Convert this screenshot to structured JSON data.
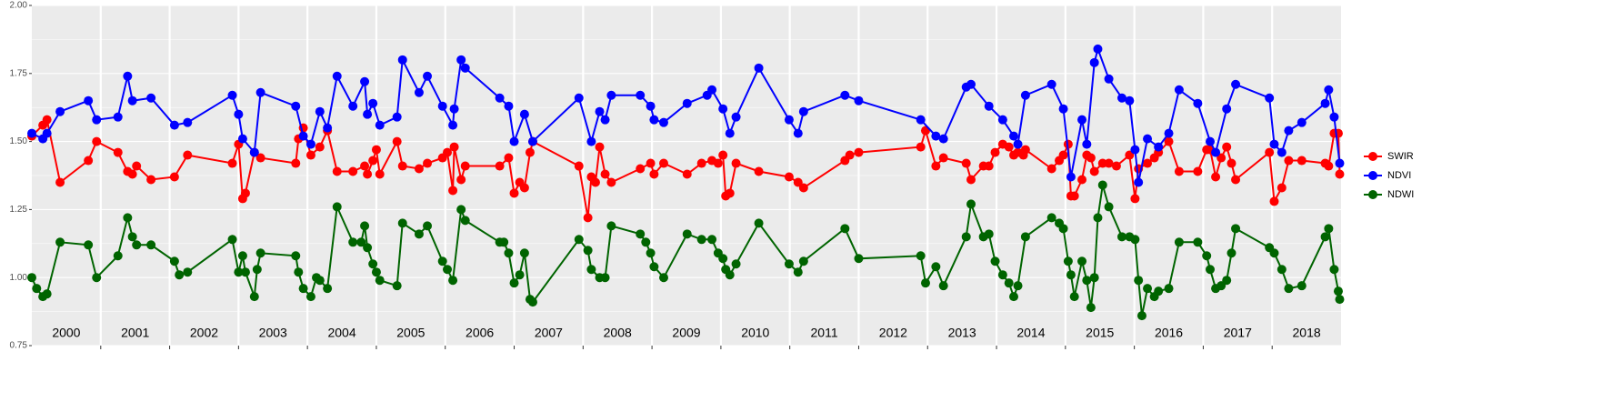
{
  "chart_data": {
    "type": "line",
    "xlim": [
      2000,
      2019
    ],
    "xticks": [
      2001,
      2002,
      2003,
      2004,
      2005,
      2006,
      2007,
      2008,
      2009,
      2010,
      2011,
      2012,
      2013,
      2014,
      2015,
      2016,
      2017,
      2018
    ],
    "year_labels": [
      2000,
      2001,
      2002,
      2003,
      2004,
      2005,
      2006,
      2007,
      2008,
      2009,
      2010,
      2011,
      2012,
      2013,
      2014,
      2015,
      2016,
      2017,
      2018
    ],
    "ylim": [
      0.75,
      2
    ],
    "yticks": [
      0.75,
      {
        "value": 1,
        "label": "1.00"
      },
      1.25,
      {
        "value": 1.5,
        "label": "1.50"
      },
      1.75,
      {
        "value": 2,
        "label": "2.00"
      }
    ],
    "grid": true,
    "legend": "right",
    "series": [
      {
        "name": "SWIR",
        "color": "#ff0000",
        "x": [
          2000.0,
          2000.16,
          2000.22,
          2000.41,
          2000.82,
          2000.94,
          2001.25,
          2001.39,
          2001.46,
          2001.52,
          2001.73,
          2002.07,
          2002.26,
          2002.91,
          2003.0,
          2003.06,
          2003.1,
          2003.23,
          2003.32,
          2003.83,
          2003.87,
          2003.94,
          2004.05,
          2004.18,
          2004.29,
          2004.43,
          2004.66,
          2004.83,
          2004.87,
          2004.95,
          2005.0,
          2005.05,
          2005.3,
          2005.38,
          2005.62,
          2005.74,
          2005.96,
          2006.03,
          2006.11,
          2006.13,
          2006.23,
          2006.29,
          2006.79,
          2006.92,
          2007.0,
          2007.08,
          2007.15,
          2007.23,
          2007.27,
          2007.94,
          2008.07,
          2008.12,
          2008.18,
          2008.24,
          2008.32,
          2008.41,
          2008.83,
          2008.98,
          2009.03,
          2009.17,
          2009.51,
          2009.72,
          2009.87,
          2009.96,
          2010.03,
          2010.07,
          2010.13,
          2010.22,
          2010.55,
          2010.99,
          2011.12,
          2011.2,
          2011.8,
          2011.87,
          2012.0,
          2012.9,
          2012.97,
          2013.12,
          2013.23,
          2013.56,
          2013.63,
          2013.81,
          2013.89,
          2013.98,
          2014.09,
          2014.18,
          2014.25,
          2014.31,
          2014.39,
          2014.42,
          2014.8,
          2014.91,
          2014.97,
          2015.04,
          2015.08,
          2015.13,
          2015.24,
          2015.31,
          2015.37,
          2015.42,
          2015.54,
          2015.63,
          2015.74,
          2015.93,
          2016.01,
          2016.06,
          2016.19,
          2016.29,
          2016.35,
          2016.5,
          2016.65,
          2016.92,
          2017.05,
          2017.1,
          2017.18,
          2017.26,
          2017.34,
          2017.41,
          2017.47,
          2017.96,
          2018.03,
          2018.14,
          2018.24,
          2018.43,
          2018.77,
          2018.82,
          2018.9,
          2018.96,
          2018.98
        ],
        "values": [
          1.52,
          1.56,
          1.58,
          1.35,
          1.43,
          1.5,
          1.46,
          1.39,
          1.38,
          1.41,
          1.36,
          1.37,
          1.45,
          1.42,
          1.49,
          1.29,
          1.31,
          1.46,
          1.44,
          1.42,
          1.51,
          1.55,
          1.45,
          1.48,
          1.54,
          1.39,
          1.39,
          1.41,
          1.38,
          1.43,
          1.47,
          1.38,
          1.5,
          1.41,
          1.4,
          1.42,
          1.44,
          1.46,
          1.32,
          1.48,
          1.36,
          1.41,
          1.41,
          1.44,
          1.31,
          1.35,
          1.33,
          1.46,
          1.5,
          1.41,
          1.22,
          1.37,
          1.35,
          1.48,
          1.38,
          1.35,
          1.4,
          1.42,
          1.38,
          1.42,
          1.38,
          1.42,
          1.43,
          1.42,
          1.45,
          1.3,
          1.31,
          1.42,
          1.39,
          1.37,
          1.35,
          1.33,
          1.43,
          1.45,
          1.46,
          1.48,
          1.54,
          1.41,
          1.44,
          1.42,
          1.36,
          1.41,
          1.41,
          1.46,
          1.49,
          1.48,
          1.45,
          1.46,
          1.45,
          1.47,
          1.4,
          1.43,
          1.45,
          1.49,
          1.3,
          1.3,
          1.36,
          1.45,
          1.44,
          1.39,
          1.42,
          1.42,
          1.41,
          1.45,
          1.29,
          1.4,
          1.42,
          1.44,
          1.46,
          1.5,
          1.39,
          1.39,
          1.47,
          1.47,
          1.37,
          1.44,
          1.48,
          1.42,
          1.36,
          1.46,
          1.28,
          1.33,
          1.43,
          1.43,
          1.42,
          1.41,
          1.53,
          1.53,
          1.38
        ]
      },
      {
        "name": "NDVI",
        "color": "#0000ff",
        "x": [
          2000.0,
          2000.16,
          2000.22,
          2000.41,
          2000.82,
          2000.94,
          2001.25,
          2001.39,
          2001.46,
          2001.73,
          2002.07,
          2002.26,
          2002.91,
          2003.0,
          2003.06,
          2003.23,
          2003.32,
          2003.83,
          2003.94,
          2004.05,
          2004.18,
          2004.29,
          2004.43,
          2004.66,
          2004.83,
          2004.87,
          2004.95,
          2005.05,
          2005.3,
          2005.38,
          2005.62,
          2005.74,
          2005.96,
          2006.11,
          2006.13,
          2006.23,
          2006.29,
          2006.79,
          2006.92,
          2007.0,
          2007.15,
          2007.27,
          2007.94,
          2008.12,
          2008.24,
          2008.32,
          2008.41,
          2008.83,
          2008.98,
          2009.03,
          2009.17,
          2009.51,
          2009.8,
          2009.87,
          2010.03,
          2010.13,
          2010.22,
          2010.55,
          2010.99,
          2011.12,
          2011.2,
          2011.8,
          2012.0,
          2012.9,
          2013.12,
          2013.23,
          2013.56,
          2013.63,
          2013.89,
          2014.09,
          2014.25,
          2014.31,
          2014.42,
          2014.8,
          2014.97,
          2015.08,
          2015.24,
          2015.31,
          2015.42,
          2015.47,
          2015.63,
          2015.82,
          2015.93,
          2016.01,
          2016.06,
          2016.19,
          2016.35,
          2016.5,
          2016.65,
          2016.92,
          2017.1,
          2017.18,
          2017.34,
          2017.47,
          2017.96,
          2018.03,
          2018.14,
          2018.24,
          2018.43,
          2018.77,
          2018.82,
          2018.9,
          2018.98
        ],
        "values": [
          1.53,
          1.51,
          1.53,
          1.61,
          1.65,
          1.58,
          1.59,
          1.74,
          1.65,
          1.66,
          1.56,
          1.57,
          1.67,
          1.6,
          1.51,
          1.46,
          1.68,
          1.63,
          1.52,
          1.49,
          1.61,
          1.55,
          1.74,
          1.63,
          1.72,
          1.6,
          1.64,
          1.56,
          1.59,
          1.8,
          1.68,
          1.74,
          1.63,
          1.56,
          1.62,
          1.8,
          1.77,
          1.66,
          1.63,
          1.5,
          1.6,
          1.5,
          1.66,
          1.5,
          1.61,
          1.58,
          1.67,
          1.67,
          1.63,
          1.58,
          1.57,
          1.64,
          1.67,
          1.69,
          1.62,
          1.53,
          1.59,
          1.77,
          1.58,
          1.53,
          1.61,
          1.67,
          1.65,
          1.58,
          1.52,
          1.51,
          1.7,
          1.71,
          1.63,
          1.58,
          1.52,
          1.49,
          1.67,
          1.71,
          1.62,
          1.37,
          1.58,
          1.49,
          1.79,
          1.84,
          1.73,
          1.66,
          1.65,
          1.47,
          1.35,
          1.51,
          1.48,
          1.53,
          1.69,
          1.64,
          1.5,
          1.46,
          1.62,
          1.71,
          1.66,
          1.49,
          1.46,
          1.54,
          1.57,
          1.64,
          1.69,
          1.59,
          1.42
        ]
      },
      {
        "name": "NDWI",
        "color": "#006400",
        "x": [
          2000.0,
          2000.07,
          2000.16,
          2000.22,
          2000.41,
          2000.82,
          2000.94,
          2001.25,
          2001.39,
          2001.46,
          2001.52,
          2001.73,
          2002.07,
          2002.14,
          2002.26,
          2002.91,
          2003.0,
          2003.06,
          2003.1,
          2003.23,
          2003.27,
          2003.32,
          2003.83,
          2003.87,
          2003.94,
          2004.05,
          2004.13,
          2004.18,
          2004.29,
          2004.43,
          2004.66,
          2004.78,
          2004.83,
          2004.87,
          2004.95,
          2005.0,
          2005.05,
          2005.3,
          2005.38,
          2005.62,
          2005.74,
          2005.96,
          2006.03,
          2006.11,
          2006.23,
          2006.29,
          2006.79,
          2006.85,
          2006.92,
          2007.0,
          2007.08,
          2007.15,
          2007.23,
          2007.27,
          2007.94,
          2008.07,
          2008.12,
          2008.24,
          2008.32,
          2008.41,
          2008.83,
          2008.91,
          2008.98,
          2009.03,
          2009.17,
          2009.51,
          2009.72,
          2009.87,
          2009.96,
          2010.03,
          2010.07,
          2010.13,
          2010.22,
          2010.55,
          2010.99,
          2011.12,
          2011.2,
          2011.8,
          2012.0,
          2012.9,
          2012.97,
          2013.12,
          2013.23,
          2013.56,
          2013.63,
          2013.81,
          2013.89,
          2013.98,
          2014.09,
          2014.18,
          2014.25,
          2014.31,
          2014.42,
          2014.8,
          2014.91,
          2014.97,
          2015.04,
          2015.08,
          2015.13,
          2015.24,
          2015.31,
          2015.37,
          2015.42,
          2015.47,
          2015.54,
          2015.63,
          2015.82,
          2015.93,
          2016.01,
          2016.06,
          2016.11,
          2016.19,
          2016.29,
          2016.35,
          2016.5,
          2016.65,
          2016.92,
          2017.05,
          2017.1,
          2017.18,
          2017.26,
          2017.34,
          2017.41,
          2017.47,
          2017.96,
          2018.03,
          2018.14,
          2018.24,
          2018.43,
          2018.77,
          2018.82,
          2018.9,
          2018.96,
          2018.98
        ],
        "values": [
          1.0,
          0.96,
          0.93,
          0.94,
          1.13,
          1.12,
          1.0,
          1.08,
          1.22,
          1.15,
          1.12,
          1.12,
          1.06,
          1.01,
          1.02,
          1.14,
          1.02,
          1.08,
          1.02,
          0.93,
          1.03,
          1.09,
          1.08,
          1.02,
          0.96,
          0.93,
          1.0,
          0.99,
          0.96,
          1.26,
          1.13,
          1.13,
          1.19,
          1.11,
          1.05,
          1.02,
          0.99,
          0.97,
          1.2,
          1.16,
          1.19,
          1.06,
          1.03,
          0.99,
          1.25,
          1.21,
          1.13,
          1.13,
          1.09,
          0.98,
          1.01,
          1.09,
          0.92,
          0.91,
          1.14,
          1.1,
          1.03,
          1.0,
          1.0,
          1.19,
          1.16,
          1.13,
          1.09,
          1.04,
          1.0,
          1.16,
          1.14,
          1.14,
          1.09,
          1.07,
          1.03,
          1.01,
          1.05,
          1.2,
          1.05,
          1.02,
          1.06,
          1.18,
          1.07,
          1.08,
          0.98,
          1.04,
          0.97,
          1.15,
          1.27,
          1.15,
          1.16,
          1.06,
          1.01,
          0.98,
          0.93,
          0.97,
          1.15,
          1.22,
          1.2,
          1.18,
          1.06,
          1.01,
          0.93,
          1.06,
          0.99,
          0.89,
          1.0,
          1.22,
          1.34,
          1.26,
          1.15,
          1.15,
          1.14,
          0.99,
          0.86,
          0.96,
          0.93,
          0.95,
          0.96,
          1.13,
          1.13,
          1.08,
          1.03,
          0.96,
          0.97,
          0.99,
          1.09,
          1.18,
          1.11,
          1.09,
          1.03,
          0.96,
          0.97,
          1.15,
          1.18,
          1.03,
          0.95,
          0.92
        ]
      }
    ]
  }
}
